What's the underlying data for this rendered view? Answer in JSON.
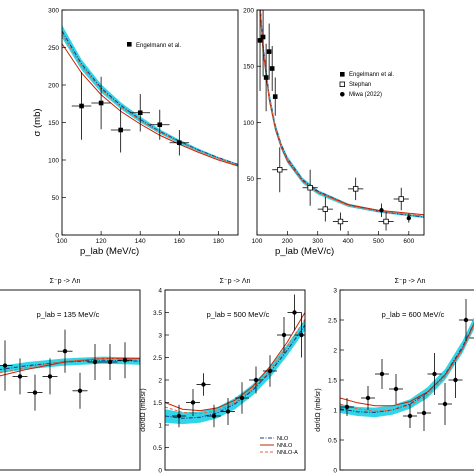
{
  "colors": {
    "band": "#19d1e6",
    "nlo": "#1f3c8a",
    "nnlo": "#cc2200",
    "nnlo_a": "#e8643c",
    "data": "#000000",
    "frame": "#000000"
  },
  "chart_data": [
    {
      "id": "top-left",
      "type": "line",
      "title": "",
      "xlabel": "p_lab (MeV/c)",
      "ylabel": "σ (mb)",
      "xlim": [
        100,
        190
      ],
      "ylim": [
        0,
        300
      ],
      "xticks": [
        "100",
        "120",
        "140",
        "160",
        "180"
      ],
      "yticks": [
        "0",
        "50",
        "100",
        "150",
        "200",
        "250",
        "300"
      ],
      "legend_position": "top-right",
      "band": {
        "x": [
          100,
          110,
          120,
          130,
          140,
          150,
          160,
          170,
          180,
          190
        ],
        "lower": [
          263,
          220,
          190,
          168,
          150,
          135,
          122,
          111,
          101,
          92
        ],
        "upper": [
          280,
          234,
          201,
          177,
          158,
          141,
          127,
          115,
          104,
          95
        ]
      },
      "series": [
        {
          "style": "nlo",
          "x": [
            100,
            110,
            120,
            130,
            140,
            150,
            160,
            170,
            180,
            190
          ],
          "y": [
            272,
            228,
            196,
            173,
            154,
            138,
            125,
            113,
            103,
            94
          ]
        },
        {
          "style": "nnlo",
          "x": [
            100,
            110,
            120,
            130,
            140,
            150,
            160,
            170,
            180,
            190
          ],
          "y": [
            255,
            216,
            187,
            165,
            148,
            133,
            121,
            110,
            100,
            92
          ]
        },
        {
          "style": "nnlo_a",
          "x": [
            100,
            110,
            120,
            130,
            140,
            150,
            160,
            170,
            180,
            190
          ],
          "y": [
            268,
            225,
            194,
            171,
            153,
            137,
            124,
            112,
            102,
            93
          ]
        }
      ],
      "datasets": [
        {
          "name": "Engelmann et al.",
          "marker": "filled-square",
          "points": [
            {
              "x": 110,
              "y": 172,
              "yerr": 45,
              "xerr": 5
            },
            {
              "x": 120,
              "y": 176,
              "yerr": 35,
              "xerr": 5
            },
            {
              "x": 130,
              "y": 140,
              "yerr": 30,
              "xerr": 5
            },
            {
              "x": 140,
              "y": 163,
              "yerr": 25,
              "xerr": 5
            },
            {
              "x": 150,
              "y": 147,
              "yerr": 20,
              "xerr": 5
            },
            {
              "x": 160,
              "y": 123,
              "yerr": 17,
              "xerr": 5
            }
          ]
        }
      ]
    },
    {
      "id": "top-right",
      "type": "line",
      "title": "",
      "xlabel": "p_lab (MeV/c)",
      "ylabel": "",
      "xlim": [
        100,
        650
      ],
      "ylim": [
        0,
        200
      ],
      "xticks": [
        "100",
        "200",
        "300",
        "400",
        "500",
        "600"
      ],
      "yticks": [
        "50",
        "100",
        "150",
        "200"
      ],
      "legend_position": "top-right",
      "band": {
        "x": [
          110,
          120,
          140,
          160,
          180,
          200,
          250,
          300,
          400,
          500,
          650
        ],
        "lower": [
          195,
          160,
          118,
          92,
          76,
          64,
          46,
          36,
          25,
          20,
          15
        ],
        "upper": [
          210,
          172,
          128,
          100,
          82,
          70,
          51,
          40,
          28,
          22,
          17
        ]
      },
      "series": [
        {
          "style": "nlo",
          "x": [
            110,
            120,
            140,
            160,
            180,
            200,
            250,
            300,
            400,
            500,
            650
          ],
          "y": [
            205,
            168,
            124,
            97,
            80,
            68,
            49,
            39,
            27,
            21,
            16
          ]
        },
        {
          "style": "nnlo",
          "x": [
            110,
            120,
            140,
            160,
            180,
            200,
            250,
            300,
            400,
            500,
            650
          ],
          "y": [
            200,
            164,
            121,
            95,
            78,
            66,
            48,
            38,
            27,
            22,
            18
          ]
        },
        {
          "style": "nnlo_a",
          "x": [
            110,
            120,
            140,
            160,
            180,
            200,
            250,
            300,
            400,
            500,
            650
          ],
          "y": [
            203,
            166,
            123,
            96,
            79,
            67,
            48,
            38,
            26,
            21,
            17
          ]
        }
      ],
      "datasets": [
        {
          "name": "Engelmann et al.",
          "marker": "filled-square",
          "points": [
            {
              "x": 110,
              "y": 173,
              "yerr": 45,
              "xerr": 5
            },
            {
              "x": 120,
              "y": 176,
              "yerr": 35,
              "xerr": 5
            },
            {
              "x": 130,
              "y": 140,
              "yerr": 30,
              "xerr": 5
            },
            {
              "x": 140,
              "y": 163,
              "yerr": 25,
              "xerr": 5
            },
            {
              "x": 150,
              "y": 148,
              "yerr": 20,
              "xerr": 5
            },
            {
              "x": 160,
              "y": 123,
              "yerr": 17,
              "xerr": 5
            }
          ]
        },
        {
          "name": "Stephan",
          "marker": "open-square",
          "points": [
            {
              "x": 175,
              "y": 58,
              "yerr": 20,
              "xerr": 25
            },
            {
              "x": 275,
              "y": 42,
              "yerr": 16,
              "xerr": 25
            },
            {
              "x": 325,
              "y": 23,
              "yerr": 11,
              "xerr": 25
            },
            {
              "x": 375,
              "y": 12,
              "yerr": 8,
              "xerr": 25
            },
            {
              "x": 425,
              "y": 41,
              "yerr": 10,
              "xerr": 25
            },
            {
              "x": 525,
              "y": 12,
              "yerr": 8,
              "xerr": 25
            },
            {
              "x": 575,
              "y": 32,
              "yerr": 10,
              "xerr": 25
            }
          ]
        },
        {
          "name": "Miwa (2022)",
          "marker": "filled-circle",
          "points": [
            {
              "x": 510,
              "y": 22,
              "yerr": 6,
              "xerr": 0
            },
            {
              "x": 600,
              "y": 15,
              "yerr": 4,
              "xerr": 0
            }
          ]
        }
      ]
    },
    {
      "id": "bottom-left",
      "type": "scatter",
      "title": "Σ⁻p -> Λn",
      "annotation": "p_lab = 135 MeV/c",
      "xlabel": "",
      "ylabel": "",
      "xlim": [
        -1,
        1
      ],
      "ylim": [
        0,
        1
      ],
      "xticks": [],
      "yticks": [],
      "band": {
        "x": [
          -1,
          -0.5,
          0,
          0.5,
          1
        ],
        "lower": [
          0.53,
          0.56,
          0.58,
          0.59,
          0.585
        ],
        "upper": [
          0.57,
          0.6,
          0.62,
          0.63,
          0.625
        ]
      },
      "series": [
        {
          "style": "nlo",
          "x": [
            -1,
            -0.5,
            0,
            0.5,
            1
          ],
          "y": [
            0.55,
            0.58,
            0.6,
            0.61,
            0.605
          ]
        },
        {
          "style": "nnlo",
          "x": [
            -1,
            -0.5,
            0,
            0.5,
            1
          ],
          "y": [
            0.51,
            0.56,
            0.6,
            0.62,
            0.62
          ]
        },
        {
          "style": "nnlo_a",
          "x": [
            -1,
            -0.5,
            0,
            0.5,
            1
          ],
          "y": [
            0.53,
            0.57,
            0.605,
            0.62,
            0.615
          ]
        }
      ],
      "datasets": [
        {
          "name": "",
          "marker": "filled-circle",
          "points": [
            {
              "x": -0.8,
              "y": 0.58,
              "yerr": 0.14,
              "xerr": 0.1
            },
            {
              "x": -0.6,
              "y": 0.52,
              "yerr": 0.1,
              "xerr": 0.1
            },
            {
              "x": -0.4,
              "y": 0.43,
              "yerr": 0.1,
              "xerr": 0.1
            },
            {
              "x": -0.2,
              "y": 0.52,
              "yerr": 0.1,
              "xerr": 0.1
            },
            {
              "x": 0.0,
              "y": 0.66,
              "yerr": 0.12,
              "xerr": 0.1
            },
            {
              "x": 0.2,
              "y": 0.44,
              "yerr": 0.1,
              "xerr": 0.1
            },
            {
              "x": 0.4,
              "y": 0.6,
              "yerr": 0.1,
              "xerr": 0.1
            },
            {
              "x": 0.6,
              "y": 0.6,
              "yerr": 0.1,
              "xerr": 0.1
            },
            {
              "x": 0.8,
              "y": 0.61,
              "yerr": 0.1,
              "xerr": 0.1
            }
          ]
        }
      ]
    },
    {
      "id": "bottom-middle",
      "type": "scatter",
      "title": "Σ⁻p -> Λn",
      "annotation": "p_lab = 500 MeV/c",
      "xlabel": "",
      "ylabel": "dσ/dΩ (mb/sr)",
      "xlim": [
        -1,
        1
      ],
      "ylim": [
        0,
        4
      ],
      "xticks": [],
      "yticks": [
        "0",
        "0.5",
        "1",
        "1.5",
        "2",
        "2.5",
        "3",
        "3.5",
        "4"
      ],
      "legend_position": "bottom-right",
      "band": {
        "x": [
          -1,
          -0.75,
          -0.5,
          -0.25,
          0,
          0.25,
          0.5,
          0.75,
          1
        ],
        "lower": [
          1.05,
          1.02,
          1.05,
          1.15,
          1.35,
          1.65,
          2.05,
          2.55,
          3.1
        ],
        "upper": [
          1.35,
          1.28,
          1.3,
          1.4,
          1.6,
          1.9,
          2.3,
          2.8,
          3.35
        ]
      },
      "series": [
        {
          "style": "nlo",
          "x": [
            -1,
            -0.75,
            -0.5,
            -0.25,
            0,
            0.25,
            0.5,
            0.75,
            1
          ],
          "y": [
            1.2,
            1.15,
            1.17,
            1.27,
            1.47,
            1.77,
            2.17,
            2.67,
            3.22
          ]
        },
        {
          "style": "nnlo",
          "x": [
            -1,
            -0.75,
            -0.5,
            -0.25,
            0,
            0.25,
            0.5,
            0.75,
            1
          ],
          "y": [
            1.5,
            1.35,
            1.32,
            1.38,
            1.55,
            1.85,
            2.3,
            2.85,
            3.5
          ]
        },
        {
          "style": "nnlo_a",
          "x": [
            -1,
            -0.75,
            -0.5,
            -0.25,
            0,
            0.25,
            0.5,
            0.75,
            1
          ],
          "y": [
            1.4,
            1.28,
            1.25,
            1.32,
            1.5,
            1.8,
            2.22,
            2.75,
            3.35
          ]
        }
      ],
      "legend": [
        "NLO",
        "NNLO",
        "NNLO-A"
      ],
      "datasets": [
        {
          "name": "",
          "marker": "filled-circle",
          "points": [
            {
              "x": -0.8,
              "y": 1.2,
              "yerr": 0.25,
              "xerr": 0.1
            },
            {
              "x": -0.6,
              "y": 1.5,
              "yerr": 0.3,
              "xerr": 0.1
            },
            {
              "x": -0.45,
              "y": 1.9,
              "yerr": 0.25,
              "xerr": 0.1
            },
            {
              "x": -0.3,
              "y": 1.2,
              "yerr": 0.25,
              "xerr": 0.1
            },
            {
              "x": -0.1,
              "y": 1.3,
              "yerr": 0.3,
              "xerr": 0.1
            },
            {
              "x": 0.1,
              "y": 1.6,
              "yerr": 0.35,
              "xerr": 0.1
            },
            {
              "x": 0.3,
              "y": 2.0,
              "yerr": 0.3,
              "xerr": 0.1
            },
            {
              "x": 0.5,
              "y": 2.2,
              "yerr": 0.35,
              "xerr": 0.1
            },
            {
              "x": 0.7,
              "y": 3.0,
              "yerr": 0.4,
              "xerr": 0.1
            },
            {
              "x": 0.85,
              "y": 3.5,
              "yerr": 0.4,
              "xerr": 0.1
            },
            {
              "x": 0.95,
              "y": 3.0,
              "yerr": 0.5,
              "xerr": 0.1
            }
          ]
        }
      ]
    },
    {
      "id": "bottom-right",
      "type": "scatter",
      "title": "Σ⁻p -> Λn",
      "annotation": "p_lab = 600 MeV/c",
      "xlabel": "",
      "ylabel": "dσ/dΩ (mb/sr)",
      "xlim": [
        -1,
        1
      ],
      "ylim": [
        0,
        3
      ],
      "xticks": [],
      "yticks": [
        "0",
        "0.5",
        "1",
        "1.5",
        "2",
        "2.5",
        "3"
      ],
      "band": {
        "x": [
          -1,
          -0.75,
          -0.5,
          -0.25,
          0,
          0.25,
          0.5,
          0.75,
          1
        ],
        "lower": [
          0.95,
          0.9,
          0.88,
          0.92,
          1.02,
          1.2,
          1.5,
          1.95,
          2.55
        ],
        "upper": [
          1.1,
          1.05,
          1.04,
          1.08,
          1.18,
          1.38,
          1.68,
          2.15,
          2.75
        ]
      },
      "series": [
        {
          "style": "nlo",
          "x": [
            -1,
            -0.75,
            -0.5,
            -0.25,
            0,
            0.25,
            0.5,
            0.75,
            1
          ],
          "y": [
            1.02,
            0.97,
            0.96,
            1.0,
            1.1,
            1.29,
            1.59,
            2.05,
            2.65
          ]
        },
        {
          "style": "nnlo",
          "x": [
            -1,
            -0.75,
            -0.5,
            -0.25,
            0,
            0.25,
            0.5,
            0.75,
            1
          ],
          "y": [
            1.2,
            1.12,
            1.07,
            1.07,
            1.14,
            1.3,
            1.58,
            2.02,
            2.65
          ]
        },
        {
          "style": "nnlo_a",
          "x": [
            -1,
            -0.75,
            -0.5,
            -0.25,
            0,
            0.25,
            0.5,
            0.75,
            1
          ],
          "y": [
            1.1,
            1.02,
            0.98,
            1.0,
            1.08,
            1.25,
            1.55,
            2.0,
            2.62
          ]
        }
      ],
      "datasets": [
        {
          "name": "",
          "marker": "filled-circle",
          "points": [
            {
              "x": -0.9,
              "y": 1.05,
              "yerr": 0.15,
              "xerr": 0.1
            },
            {
              "x": -0.6,
              "y": 1.2,
              "yerr": 0.2,
              "xerr": 0.1
            },
            {
              "x": -0.4,
              "y": 1.6,
              "yerr": 0.25,
              "xerr": 0.1
            },
            {
              "x": -0.2,
              "y": 1.35,
              "yerr": 0.25,
              "xerr": 0.1
            },
            {
              "x": 0.0,
              "y": 0.9,
              "yerr": 0.2,
              "xerr": 0.1
            },
            {
              "x": 0.2,
              "y": 0.95,
              "yerr": 0.3,
              "xerr": 0.1
            },
            {
              "x": 0.35,
              "y": 1.6,
              "yerr": 0.35,
              "xerr": 0.1
            },
            {
              "x": 0.5,
              "y": 1.1,
              "yerr": 0.35,
              "xerr": 0.1
            },
            {
              "x": 0.65,
              "y": 1.5,
              "yerr": 0.3,
              "xerr": 0.1
            },
            {
              "x": 0.8,
              "y": 2.5,
              "yerr": 0.35,
              "xerr": 0.1
            },
            {
              "x": 0.95,
              "y": 2.2,
              "yerr": 0.4,
              "xerr": 0.1
            }
          ]
        }
      ]
    }
  ]
}
